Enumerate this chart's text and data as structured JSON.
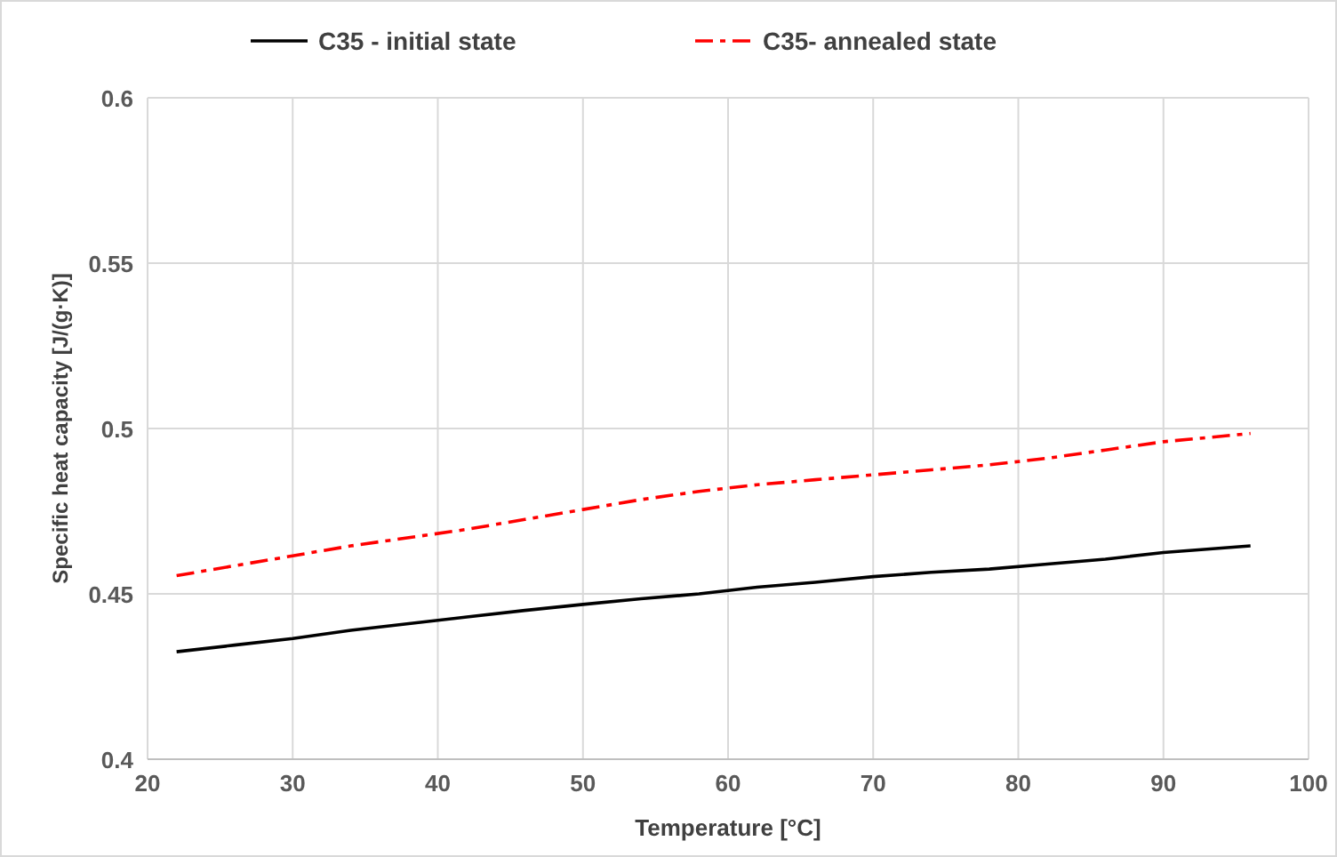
{
  "chart_data": {
    "type": "line",
    "xlabel": "Temperature [°C]",
    "ylabel": "Specific heat capacity [J/(g·K)]",
    "xlim": [
      20,
      100
    ],
    "xticks": [
      20,
      30,
      40,
      50,
      60,
      70,
      80,
      90,
      100
    ],
    "ylim": [
      0.4,
      0.6
    ],
    "yticks": [
      0.4,
      0.45,
      0.5,
      0.55,
      0.6
    ],
    "grid": true,
    "legend": "top",
    "marker": "none",
    "x": [
      22,
      26,
      30,
      34,
      38,
      42,
      46,
      50,
      54,
      58,
      62,
      66,
      70,
      74,
      78,
      82,
      86,
      90,
      96
    ],
    "series": [
      {
        "name": "C35 - initial state",
        "color": "#000000",
        "line_style": "solid",
        "values": [
          0.4325,
          0.4345,
          0.4365,
          0.439,
          0.441,
          0.443,
          0.445,
          0.4468,
          0.4485,
          0.45,
          0.452,
          0.4535,
          0.4552,
          0.4565,
          0.4575,
          0.459,
          0.4605,
          0.4625,
          0.4645
        ]
      },
      {
        "name": "C35- annealed state",
        "color": "#ff0000",
        "line_style": "dashed",
        "values": [
          0.4555,
          0.4585,
          0.4615,
          0.4645,
          0.467,
          0.4695,
          0.4725,
          0.4755,
          0.4785,
          0.481,
          0.483,
          0.4845,
          0.486,
          0.4875,
          0.489,
          0.491,
          0.4935,
          0.496,
          0.4985
        ]
      }
    ]
  }
}
